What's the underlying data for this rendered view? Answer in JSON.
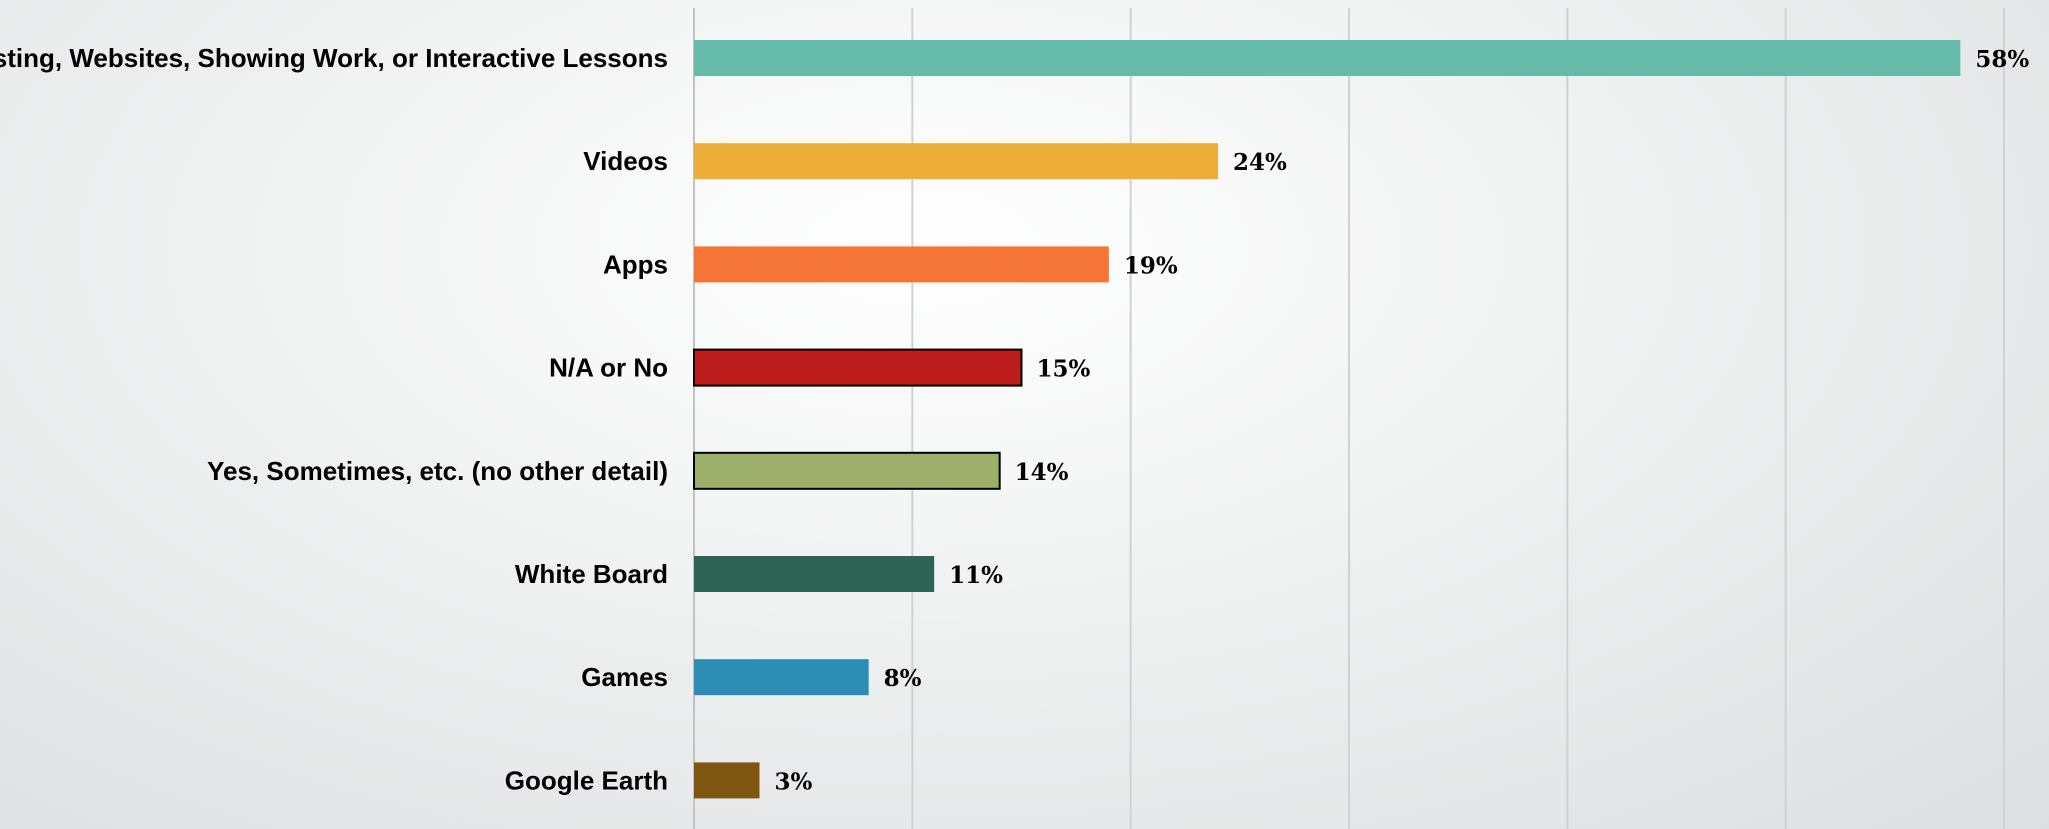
{
  "chart_data": {
    "type": "bar",
    "orientation": "horizontal",
    "categories": [
      "Casting, Websites, Showing Work, or Interactive Lessons",
      "Videos",
      "Apps",
      "N/A or No",
      "Yes, Sometimes, etc. (no other detail)",
      "White Board",
      "Games",
      "Google Earth"
    ],
    "values": [
      58,
      24,
      19,
      15,
      14,
      11,
      8,
      3
    ],
    "value_labels": [
      "58%",
      "24%",
      "19%",
      "15%",
      "14%",
      "11%",
      "8%",
      "3%"
    ],
    "colors": [
      "#66bba8",
      "#ecae38",
      "#f57536",
      "#bd1c1c",
      "#9cb06a",
      "#2e6455",
      "#2b8db4",
      "#7e5610"
    ],
    "outlined": [
      false,
      false,
      false,
      true,
      true,
      false,
      false,
      false
    ],
    "xlim": [
      0,
      60
    ],
    "grid": true,
    "legend": "none",
    "title": "",
    "xlabel": "",
    "ylabel": ""
  }
}
